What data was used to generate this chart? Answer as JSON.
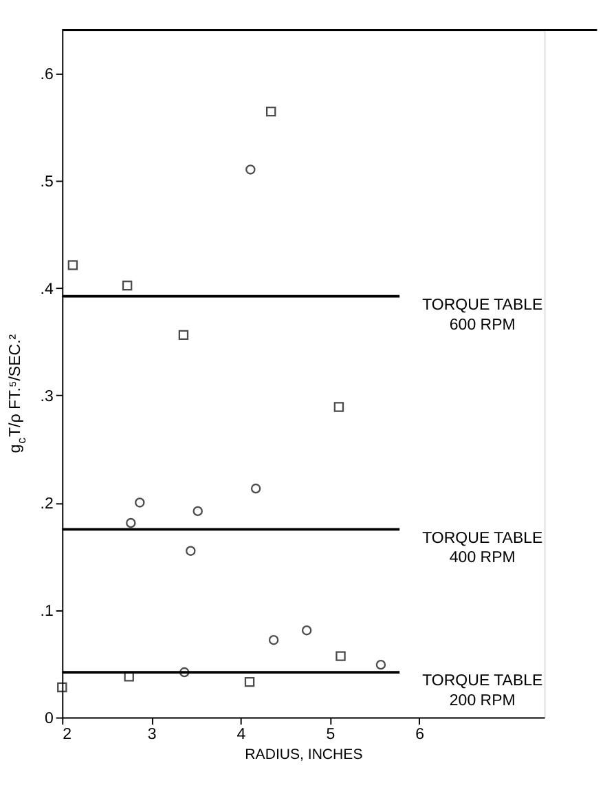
{
  "chart_data": {
    "type": "scatter",
    "xlabel": "RADIUS, INCHES",
    "ylabel": "g$_{c}$T/ρ  FT.⁵/SEC.²",
    "xlim": [
      2,
      7.4
    ],
    "xticks": [
      2,
      3,
      4,
      5,
      6
    ],
    "ylim": [
      0,
      0.64
    ],
    "yticks": [
      0,
      {
        "value": 0.1,
        "label": ".1"
      },
      {
        "value": 0.2,
        "label": ".2"
      },
      {
        "value": 0.3,
        "label": ".3"
      },
      {
        "value": 0.4,
        "label": ".4"
      },
      {
        "value": 0.5,
        "label": ".5"
      },
      {
        "value": 0.6,
        "label": ".6"
      }
    ],
    "grid": false,
    "series": [
      {
        "color": "#000000",
        "marker": "square",
        "x": [
          2.12,
          2.73,
          3.36,
          4.34,
          5.1,
          2.0,
          2.75,
          4.1,
          5.12
        ],
        "values": [
          0.421,
          0.402,
          0.356,
          0.564,
          0.289,
          0.028,
          0.038,
          0.033,
          0.057
        ]
      },
      {
        "color": "#000000",
        "marker": "circle",
        "x": [
          4.11,
          2.77,
          2.87,
          3.44,
          3.52,
          4.17,
          4.37,
          4.74,
          5.57,
          3.37
        ],
        "values": [
          0.51,
          0.181,
          0.2,
          0.155,
          0.192,
          0.213,
          0.072,
          0.081,
          0.049,
          0.042
        ]
      }
    ],
    "ref_lines": [
      {
        "axis": "y",
        "value": 0.392,
        "label": "TORQUE TABLE\n600 RPM",
        "color": "#000000"
      },
      {
        "axis": "y",
        "value": 0.175,
        "label": "TORQUE TABLE\n400 RPM",
        "color": "#000000"
      },
      {
        "axis": "y",
        "value": 0.042,
        "label": "TORQUE TABLE\n200 RPM",
        "color": "#000000"
      }
    ]
  }
}
